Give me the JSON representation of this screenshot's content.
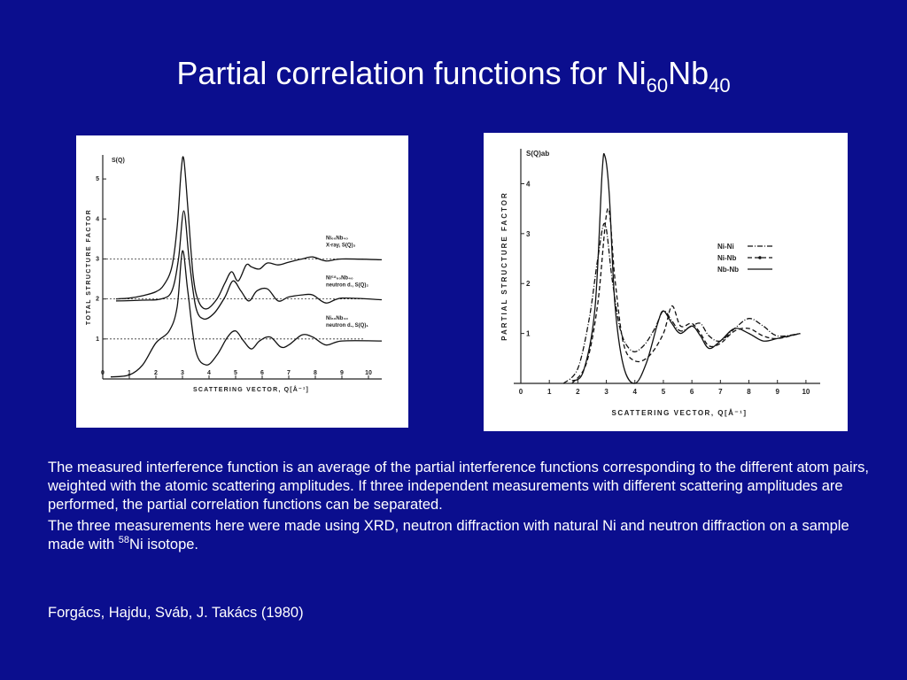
{
  "slide": {
    "title_main": "Partial correlation functions for Ni",
    "title_sub1": "60",
    "title_mid": "Nb",
    "title_sub2": "40",
    "paragraph1": "The measured interference function is an average of the partial interference functions corresponding to the different atom pairs, weighted with the atomic scattering amplitudes. If three independent measurements with different scattering amplitudes are performed, the partial correlation functions can be separated.",
    "paragraph2_before": "The three measurements here were made using XRD, neutron diffraction with natural Ni and neutron diffraction on a sample made with ",
    "paragraph2_iso": "58",
    "paragraph2_after": "Ni isotope.",
    "reference": "Forgács, Hajdu, Sváb, J. Takács (1980)",
    "colors": {
      "background": "#0b0e8e",
      "text": "#ffffff"
    }
  },
  "chart_data": [
    {
      "type": "line",
      "ylabel_text": "TOTAL STRUCTURE FACTOR",
      "yaxis_symbol": "S(Q)",
      "xlabel": "SCATTERING VECTOR, Q[Å⁻¹]",
      "x_ticks": [
        "0",
        "1",
        "2",
        "3",
        "4",
        "5",
        "6",
        "7",
        "8",
        "9",
        "10"
      ],
      "y_ticks": [
        "1",
        "2",
        "3",
        "4",
        "5"
      ],
      "xlim": [
        0,
        10.5
      ],
      "ylim": [
        0,
        5.6
      ],
      "series": [
        {
          "name": "Ni60Nb40 X-ray, S(Q)3",
          "label_line1": "Ni₆₀Nb₄₀",
          "label_line2": "X-ray, S(Q)₃",
          "baseline": 2,
          "points": [
            [
              0.5,
              2.0
            ],
            [
              1.0,
              2.02
            ],
            [
              1.5,
              2.08
            ],
            [
              2.0,
              2.18
            ],
            [
              2.3,
              2.35
            ],
            [
              2.6,
              2.8
            ],
            [
              2.8,
              3.8
            ],
            [
              2.95,
              5.2
            ],
            [
              3.05,
              5.5
            ],
            [
              3.2,
              4.3
            ],
            [
              3.4,
              2.6
            ],
            [
              3.6,
              1.95
            ],
            [
              3.9,
              1.75
            ],
            [
              4.3,
              2.0
            ],
            [
              4.6,
              2.4
            ],
            [
              4.85,
              2.68
            ],
            [
              5.1,
              2.45
            ],
            [
              5.4,
              2.85
            ],
            [
              5.6,
              2.8
            ],
            [
              5.9,
              2.75
            ],
            [
              6.2,
              2.9
            ],
            [
              6.6,
              2.85
            ],
            [
              7.0,
              2.92
            ],
            [
              7.5,
              3.0
            ],
            [
              7.9,
              3.05
            ],
            [
              8.4,
              2.95
            ],
            [
              9.0,
              3.0
            ],
            [
              10.5,
              2.98
            ]
          ]
        },
        {
          "name": "Ni58Nb40 neutron d., S(Q)2",
          "label_line1": "Ni⁵⁸₆₀Nb₄₀",
          "label_line2": "neutron d., S(Q)₂",
          "baseline": 1,
          "points": [
            [
              0.5,
              1.95
            ],
            [
              1.5,
              1.97
            ],
            [
              2.2,
              2.0
            ],
            [
              2.6,
              2.2
            ],
            [
              2.85,
              3.0
            ],
            [
              3.05,
              4.2
            ],
            [
              3.25,
              3.0
            ],
            [
              3.5,
              1.8
            ],
            [
              3.8,
              1.5
            ],
            [
              4.2,
              1.65
            ],
            [
              4.6,
              2.05
            ],
            [
              4.9,
              2.45
            ],
            [
              5.2,
              2.2
            ],
            [
              5.5,
              1.95
            ],
            [
              5.8,
              2.2
            ],
            [
              6.2,
              2.25
            ],
            [
              6.6,
              1.95
            ],
            [
              7.0,
              2.05
            ],
            [
              7.5,
              2.1
            ],
            [
              7.9,
              2.1
            ],
            [
              8.4,
              1.9
            ],
            [
              9.0,
              2.02
            ],
            [
              10.5,
              1.98
            ]
          ]
        },
        {
          "name": "Ni60Nb40 neutron d., S(Q)1",
          "label_line1": "Ni₆₀Nb₄₀",
          "label_line2": "neutron d., S(Q)₁",
          "baseline": 0,
          "points": [
            [
              0.3,
              0.05
            ],
            [
              1.0,
              0.1
            ],
            [
              1.5,
              0.35
            ],
            [
              2.0,
              0.9
            ],
            [
              2.5,
              1.2
            ],
            [
              2.8,
              1.8
            ],
            [
              3.0,
              3.2
            ],
            [
              3.2,
              2.2
            ],
            [
              3.5,
              0.7
            ],
            [
              3.9,
              0.35
            ],
            [
              4.3,
              0.6
            ],
            [
              4.7,
              1.05
            ],
            [
              5.0,
              1.2
            ],
            [
              5.3,
              0.95
            ],
            [
              5.6,
              0.75
            ],
            [
              5.9,
              0.95
            ],
            [
              6.3,
              1.05
            ],
            [
              6.7,
              0.8
            ],
            [
              7.0,
              0.85
            ],
            [
              7.5,
              1.1
            ],
            [
              7.9,
              1.05
            ],
            [
              8.4,
              0.85
            ],
            [
              9.0,
              0.95
            ],
            [
              10.5,
              0.95
            ]
          ]
        }
      ]
    },
    {
      "type": "line",
      "ylabel_text": "PARTIAL STRUCTURE FACTOR",
      "yaxis_symbol": "S(Q)ab",
      "xlabel": "SCATTERING VECTOR, Q[Å⁻¹]",
      "x_ticks": [
        "0",
        "1",
        "2",
        "3",
        "4",
        "5",
        "6",
        "7",
        "8",
        "9",
        "10"
      ],
      "y_ticks": [
        "1",
        "2",
        "3",
        "4"
      ],
      "xlim": [
        0,
        10.5
      ],
      "ylim": [
        0,
        4.7
      ],
      "legend_position": "top-right",
      "series": [
        {
          "name": "Ni-Ni",
          "style": "dash-dot",
          "points": [
            [
              1.5,
              0.0
            ],
            [
              2.0,
              0.3
            ],
            [
              2.4,
              1.3
            ],
            [
              2.7,
              2.5
            ],
            [
              2.95,
              3.2
            ],
            [
              3.2,
              2.1
            ],
            [
              3.5,
              1.05
            ],
            [
              3.9,
              0.65
            ],
            [
              4.3,
              0.75
            ],
            [
              4.7,
              1.1
            ],
            [
              5.0,
              1.45
            ],
            [
              5.3,
              1.25
            ],
            [
              5.6,
              1.05
            ],
            [
              6.0,
              1.15
            ],
            [
              6.3,
              1.2
            ],
            [
              6.6,
              0.95
            ],
            [
              7.0,
              0.85
            ],
            [
              7.5,
              1.1
            ],
            [
              8.0,
              1.3
            ],
            [
              8.5,
              1.15
            ],
            [
              9.0,
              0.95
            ],
            [
              9.8,
              1.0
            ]
          ]
        },
        {
          "name": "Ni-Nb",
          "style": "dash-marker",
          "points": [
            [
              1.8,
              0.0
            ],
            [
              2.3,
              0.4
            ],
            [
              2.7,
              1.6
            ],
            [
              3.05,
              3.5
            ],
            [
              3.3,
              2.1
            ],
            [
              3.6,
              0.8
            ],
            [
              4.0,
              0.45
            ],
            [
              4.5,
              0.55
            ],
            [
              5.0,
              1.0
            ],
            [
              5.3,
              1.55
            ],
            [
              5.6,
              1.15
            ],
            [
              6.0,
              1.2
            ],
            [
              6.3,
              1.0
            ],
            [
              6.6,
              0.75
            ],
            [
              7.0,
              0.8
            ],
            [
              7.5,
              1.05
            ],
            [
              8.0,
              1.1
            ],
            [
              8.5,
              0.95
            ],
            [
              9.0,
              0.9
            ],
            [
              9.8,
              1.0
            ]
          ]
        },
        {
          "name": "Nb-Nb",
          "style": "solid",
          "points": [
            [
              1.8,
              0.05
            ],
            [
              2.2,
              0.25
            ],
            [
              2.6,
              1.5
            ],
            [
              2.85,
              4.2
            ],
            [
              2.95,
              4.55
            ],
            [
              3.1,
              3.8
            ],
            [
              3.3,
              1.6
            ],
            [
              3.6,
              0.35
            ],
            [
              4.0,
              0.0
            ],
            [
              4.4,
              0.4
            ],
            [
              4.8,
              1.2
            ],
            [
              5.0,
              1.45
            ],
            [
              5.3,
              1.2
            ],
            [
              5.6,
              1.0
            ],
            [
              6.0,
              1.15
            ],
            [
              6.3,
              0.95
            ],
            [
              6.6,
              0.7
            ],
            [
              7.0,
              0.85
            ],
            [
              7.5,
              1.1
            ],
            [
              8.0,
              1.0
            ],
            [
              8.5,
              0.85
            ],
            [
              9.0,
              0.9
            ],
            [
              9.8,
              1.0
            ]
          ]
        }
      ]
    }
  ]
}
